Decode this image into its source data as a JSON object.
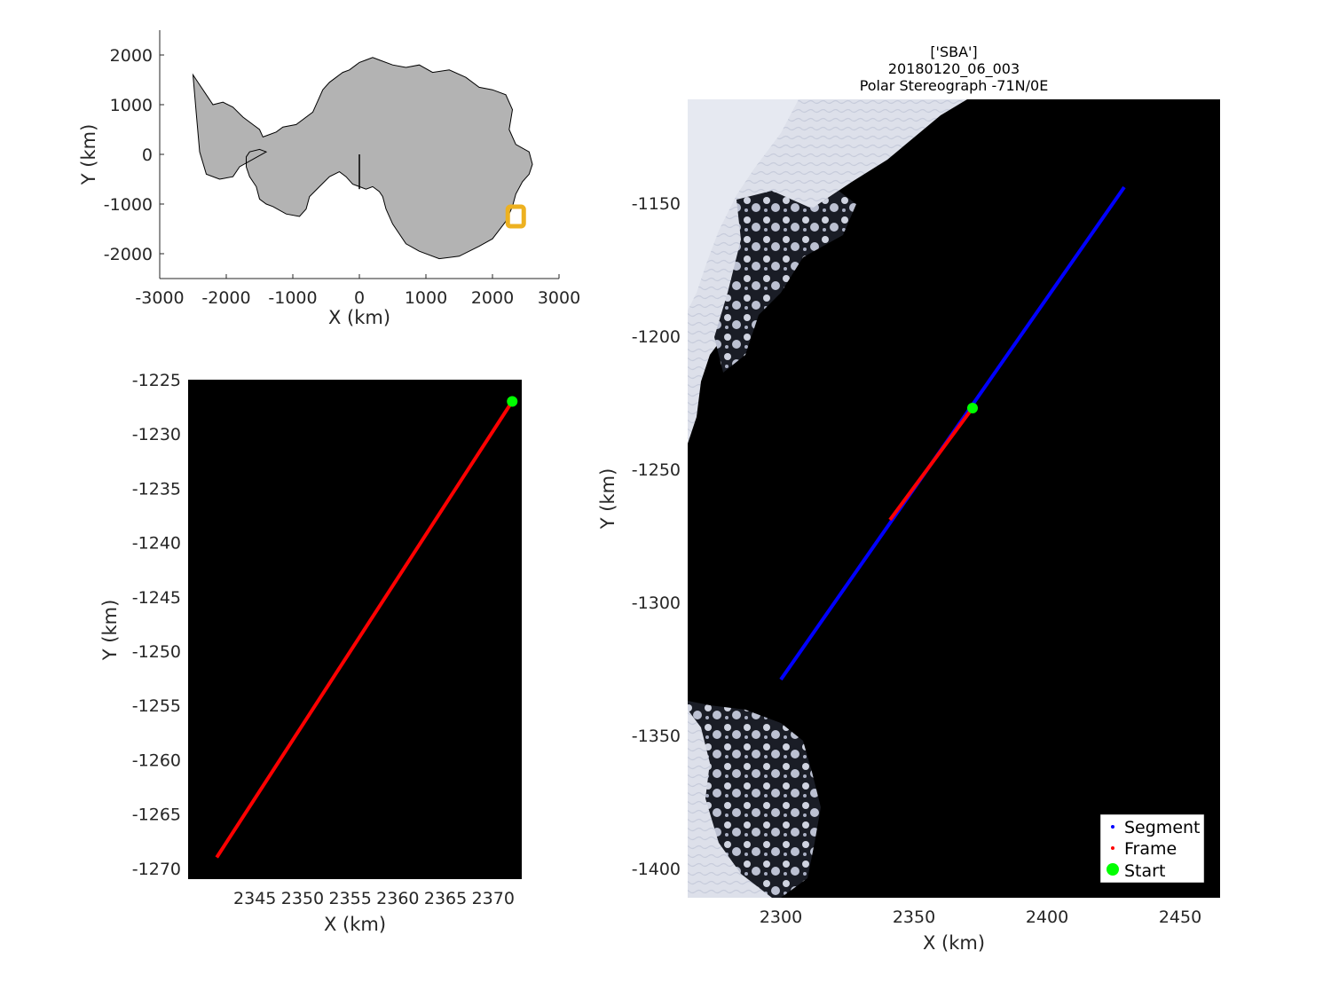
{
  "chart_data": [
    {
      "id": "overview",
      "type": "scatter",
      "xlabel": "X (km)",
      "ylabel": "Y (km)",
      "xlim": [
        -3000,
        3000
      ],
      "ylim": [
        -2500,
        2500
      ],
      "xticks": [
        -3000,
        -2000,
        -1000,
        0,
        1000,
        2000,
        3000
      ],
      "yticks": [
        -2000,
        -1000,
        0,
        1000,
        2000
      ],
      "land_color": "#b3b3b3",
      "marker_color": "#edb120",
      "continent_outline": {
        "x": [
          -2500,
          -2400,
          -2300,
          -2200,
          -2050,
          -1900,
          -1750,
          -1600,
          -1500,
          -1450,
          -1350,
          -1250,
          -1150,
          -950,
          -700,
          -550,
          -450,
          -350,
          -250,
          -150,
          -50,
          0,
          100,
          200,
          300,
          500,
          700,
          900,
          1100,
          1350,
          1600,
          1800,
          2000,
          2200,
          2300,
          2250,
          2350,
          2550,
          2600,
          2550,
          2450,
          2350,
          2300,
          2200,
          2000,
          1800,
          1500,
          1200,
          900,
          700,
          500,
          400,
          350,
          300,
          200,
          100,
          0,
          -100,
          -200,
          -300,
          -450,
          -600,
          -750,
          -800,
          -900,
          -1100,
          -1300,
          -1400,
          -1500,
          -1550,
          -1650,
          -1700,
          -1700,
          -1650,
          -1500,
          -1400,
          -1600,
          -1800,
          -1900,
          -2100,
          -2300,
          -2400,
          -2450,
          -2500
        ],
        "y": [
          1600,
          1400,
          1200,
          1000,
          1050,
          950,
          750,
          600,
          500,
          350,
          400,
          450,
          550,
          600,
          850,
          1300,
          1450,
          1550,
          1650,
          1700,
          1800,
          1850,
          1900,
          1950,
          1900,
          1800,
          1750,
          1800,
          1650,
          1700,
          1550,
          1350,
          1300,
          1200,
          900,
          500,
          200,
          50,
          -200,
          -400,
          -550,
          -800,
          -1050,
          -1350,
          -1700,
          -1850,
          -2050,
          -2100,
          -1950,
          -1800,
          -1400,
          -1100,
          -850,
          -750,
          -650,
          -700,
          -650,
          -600,
          -450,
          -350,
          -450,
          -650,
          -850,
          -1100,
          -1250,
          -1200,
          -1050,
          -1000,
          -900,
          -650,
          -450,
          -250,
          -50,
          50,
          100,
          50,
          -100,
          -250,
          -450,
          -500,
          -400,
          50,
          800,
          1600
        ],
        "peninsula_line": {
          "x": [
            0,
            0
          ],
          "y": [
            0,
            -700
          ]
        }
      },
      "marker": {
        "x": 2350,
        "y": -1250
      }
    },
    {
      "id": "zoom",
      "type": "line",
      "xlabel": "X (km)",
      "ylabel": "Y (km)",
      "xlim": [
        2338,
        2373
      ],
      "ylim": [
        -1271,
        -1225
      ],
      "xticks": [
        2345,
        2350,
        2355,
        2360,
        2365,
        2370
      ],
      "yticks": [
        -1225,
        -1230,
        -1235,
        -1240,
        -1245,
        -1250,
        -1255,
        -1260,
        -1265,
        -1270
      ],
      "background": "#000000",
      "series": [
        {
          "name": "Frame",
          "color": "#ff0000",
          "x": [
            2341,
            2372
          ],
          "y": [
            -1269,
            -1227
          ]
        },
        {
          "name": "Start",
          "color": "#00ff00",
          "x": [
            2372
          ],
          "y": [
            -1227
          ]
        }
      ]
    },
    {
      "id": "main",
      "type": "line",
      "title": [
        "['SBA']",
        "20180120_06_003",
        "Polar Stereograph -71N/0E"
      ],
      "xlabel": "X (km)",
      "ylabel": "Y (km)",
      "xlim": [
        2265,
        2465
      ],
      "ylim": [
        -1411,
        -1111
      ],
      "xticks": [
        2300,
        2350,
        2400,
        2450
      ],
      "yticks": [
        -1150,
        -1200,
        -1250,
        -1300,
        -1350,
        -1400
      ],
      "background": "#000000",
      "ice_color": "#dde0ea",
      "series": [
        {
          "name": "Segment",
          "color": "#0000ff",
          "x": [
            2300,
            2429
          ],
          "y": [
            -1329,
            -1144
          ]
        },
        {
          "name": "Frame",
          "color": "#ff0000",
          "x": [
            2341,
            2372
          ],
          "y": [
            -1269,
            -1227
          ]
        },
        {
          "name": "Start",
          "color": "#00ff00",
          "x": [
            2372
          ],
          "y": [
            -1227
          ]
        }
      ],
      "legend": {
        "position": "bottom-right",
        "entries": [
          "Segment",
          "Frame",
          "Start"
        ]
      }
    }
  ]
}
